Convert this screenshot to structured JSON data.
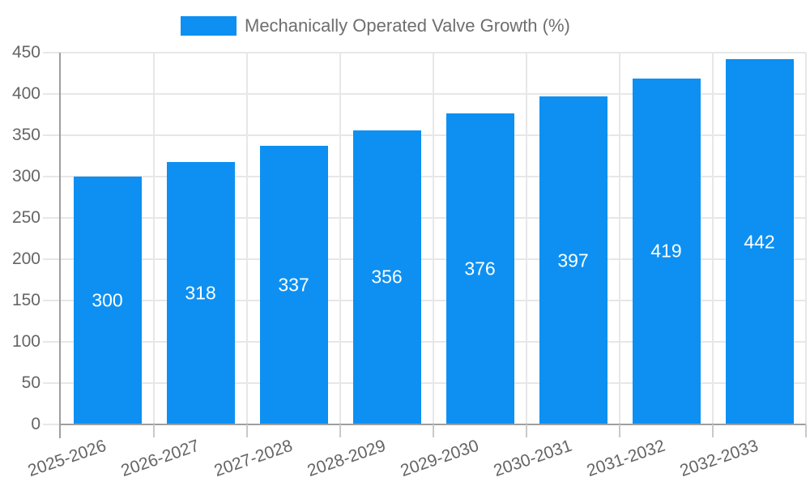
{
  "legend": {
    "label": "Mechanically Operated Valve Growth (%)"
  },
  "chart_data": {
    "type": "bar",
    "title": "",
    "series_name": "Mechanically Operated Valve Growth (%)",
    "categories": [
      "2025-2026",
      "2026-2027",
      "2027-2028",
      "2028-2029",
      "2029-2030",
      "2030-2031",
      "2031-2032",
      "2032-2033"
    ],
    "values": [
      300,
      318,
      337,
      356,
      376,
      397,
      419,
      442
    ],
    "bar_value_labels": [
      "300",
      "318",
      "337",
      "356",
      "376",
      "397",
      "419",
      "442"
    ],
    "xlabel": "",
    "ylabel": "",
    "ylim": [
      0,
      450
    ],
    "ytick_step": 50,
    "ytick_labels": [
      "0",
      "50",
      "100",
      "150",
      "200",
      "250",
      "300",
      "350",
      "400",
      "450"
    ],
    "grid": true,
    "legend_position": "top",
    "value_label_position": "inside-center",
    "x_label_rotation_deg": -19
  },
  "colors": {
    "bar": "#0d90f2",
    "grid": "#e7e7e7",
    "axis": "#9e9e9e",
    "tick": "#c9c9c9",
    "axis_text": "#656565",
    "legend_text": "#6e6e6e",
    "bar_label_text": "#ffffff",
    "background": "#ffffff"
  }
}
